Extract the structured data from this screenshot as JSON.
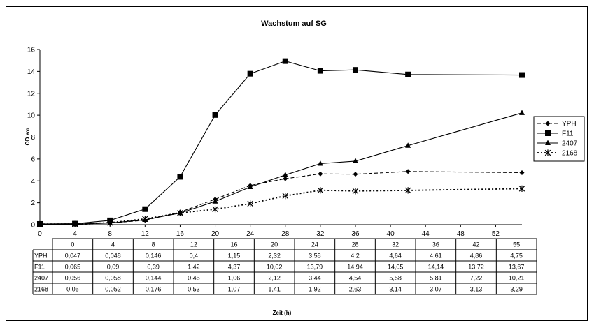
{
  "chart_data": {
    "type": "line",
    "title": "Wachstum auf SG",
    "ylabel": "OD",
    "ylabel_sub": "600",
    "xlabel": "Zeit (h)",
    "ylim": [
      0,
      16
    ],
    "y_ticks": [
      "0",
      "2",
      "4",
      "6",
      "8",
      "10",
      "12",
      "14",
      "16"
    ],
    "x_ticks": [
      "0",
      "4",
      "8",
      "12",
      "16",
      "20",
      "24",
      "28",
      "32",
      "36",
      "40",
      "44",
      "48",
      "52"
    ],
    "xlim": [
      0,
      55
    ],
    "x": [
      0,
      4,
      8,
      12,
      16,
      20,
      24,
      28,
      32,
      36,
      42,
      55
    ],
    "table_header": [
      "0",
      "4",
      "8",
      "12",
      "16",
      "20",
      "24",
      "28",
      "32",
      "36",
      "42",
      "55"
    ],
    "legend_position": "right",
    "series": [
      {
        "name": "YPH",
        "marker": "diamond",
        "line": "dashed",
        "color": "#000000",
        "values": [
          0.047,
          0.048,
          0.146,
          0.4,
          1.15,
          2.32,
          3.58,
          4.2,
          4.64,
          4.61,
          4.86,
          4.75
        ],
        "labels": [
          "0,047",
          "0,048",
          "0,146",
          "0,4",
          "1,15",
          "2,32",
          "3,58",
          "4,2",
          "4,64",
          "4,61",
          "4,86",
          "4,75"
        ]
      },
      {
        "name": "F11",
        "marker": "square",
        "line": "solid",
        "color": "#000000",
        "values": [
          0.065,
          0.09,
          0.39,
          1.42,
          4.37,
          10.02,
          13.79,
          14.94,
          14.05,
          14.14,
          13.72,
          13.67
        ],
        "labels": [
          "0,065",
          "0,09",
          "0,39",
          "1,42",
          "4,37",
          "10,02",
          "13,79",
          "14,94",
          "14,05",
          "14,14",
          "13,72",
          "13,67"
        ]
      },
      {
        "name": "2407",
        "marker": "triangle",
        "line": "solid",
        "color": "#000000",
        "values": [
          0.056,
          0.058,
          0.144,
          0.45,
          1.06,
          2.12,
          3.44,
          4.54,
          5.58,
          5.81,
          7.22,
          10.21
        ],
        "labels": [
          "0,056",
          "0,058",
          "0,144",
          "0,45",
          "1,06",
          "2,12",
          "3,44",
          "4,54",
          "5,58",
          "5,81",
          "7,22",
          "10,21"
        ]
      },
      {
        "name": "2168",
        "marker": "star",
        "line": "dotted",
        "color": "#000000",
        "values": [
          0.05,
          0.052,
          0.176,
          0.53,
          1.07,
          1.41,
          1.92,
          2.63,
          3.14,
          3.07,
          3.13,
          3.29
        ],
        "labels": [
          "0,05",
          "0,052",
          "0,176",
          "0,53",
          "1,07",
          "1,41",
          "1,92",
          "2,63",
          "3,14",
          "3,07",
          "3,13",
          "3,29"
        ]
      }
    ]
  }
}
